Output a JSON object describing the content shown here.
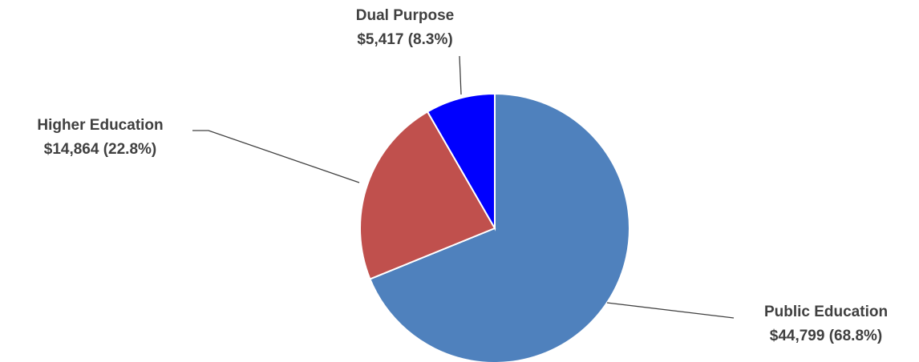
{
  "chart_data": {
    "type": "pie",
    "categories": [
      "Public Education",
      "Higher Education",
      "Dual Purpose"
    ],
    "values": [
      44799,
      14864,
      5417
    ],
    "value_labels": [
      "$44,799 (68.8%)",
      "$14,864 (22.8%)",
      "$5,417 (8.3%)"
    ],
    "colors": [
      "#4f81bd",
      "#c0504d",
      "#0000ff"
    ]
  }
}
